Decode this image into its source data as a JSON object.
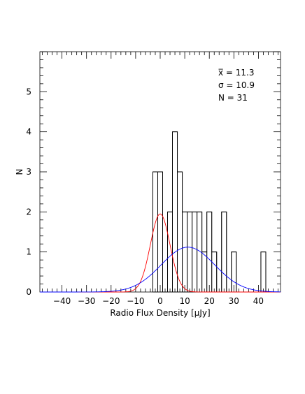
{
  "chart_data": {
    "type": "bar",
    "xlabel": "Radio Flux Density [μJy]",
    "ylabel": "N",
    "xlim": [
      -49,
      49
    ],
    "ylim": [
      0,
      6
    ],
    "grid": false,
    "x_tick_labels": [
      "−40",
      "−30",
      "−20",
      "−10",
      "0",
      "10",
      "20",
      "30",
      "40"
    ],
    "x_tick_values": [
      -40,
      -30,
      -20,
      -10,
      0,
      10,
      20,
      30,
      40
    ],
    "y_tick_labels": [
      "0",
      "1",
      "2",
      "3",
      "4",
      "5"
    ],
    "y_tick_values": [
      0,
      1,
      2,
      3,
      4,
      5
    ],
    "histogram": {
      "bin_edges": [
        -3,
        -1,
        1,
        3,
        5,
        7,
        9,
        11,
        13,
        15,
        17,
        19,
        21,
        23,
        25,
        27,
        29,
        31,
        33,
        35,
        37,
        39,
        41,
        43
      ],
      "counts": [
        3,
        3,
        0,
        2,
        4,
        3,
        2,
        2,
        2,
        2,
        1,
        2,
        1,
        0,
        2,
        0,
        1,
        0,
        0,
        0,
        0,
        0,
        1
      ]
    },
    "curves": [
      {
        "color": "#ff0000",
        "mean": 0.0,
        "sigma": 4.0,
        "peak": 1.95
      },
      {
        "color": "#0000ff",
        "mean": 11.3,
        "sigma": 10.9,
        "peak": 1.12
      }
    ],
    "annotations": {
      "mean_label": "x̅  = 11.3",
      "sigma_label": "σ  = 10.9",
      "n_label": "N = 31"
    }
  }
}
